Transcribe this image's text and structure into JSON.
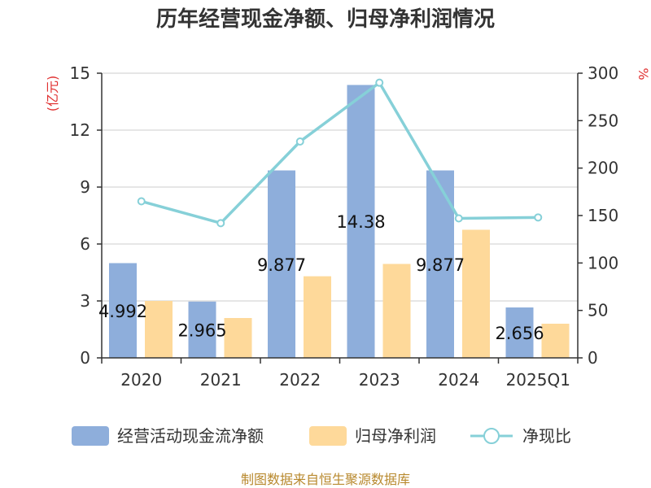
{
  "chart_data": {
    "type": "bar",
    "title": "历年经营现金净额、归母净利润情况",
    "categories": [
      "2020",
      "2021",
      "2022",
      "2023",
      "2024",
      "2025Q1"
    ],
    "y_left": {
      "label": "(亿元)",
      "range": [
        0,
        15
      ],
      "ticks": [
        "0",
        "3",
        "6",
        "9",
        "12",
        "15"
      ]
    },
    "y_right": {
      "label": "%",
      "range": [
        0,
        300
      ],
      "ticks": [
        "0",
        "50",
        "100",
        "150",
        "200",
        "250",
        "300"
      ]
    },
    "series": [
      {
        "name": "经营活动现金流净额",
        "type": "bar",
        "axis": "left",
        "color": "#8eaedb",
        "values": [
          4.992,
          2.965,
          9.877,
          14.38,
          9.877,
          2.656
        ],
        "labels": [
          "4.992",
          "2.965",
          "9.877",
          "14.38",
          "9.877",
          "2.656"
        ]
      },
      {
        "name": "归母净利润",
        "type": "bar",
        "axis": "left",
        "color": "#fed99a",
        "values": [
          3.0,
          2.1,
          4.3,
          4.95,
          6.75,
          1.8
        ]
      },
      {
        "name": "净现比",
        "type": "line",
        "axis": "right",
        "color": "#86d0d8",
        "values": [
          165,
          142,
          228,
          290,
          147,
          148
        ]
      }
    ],
    "grid": true,
    "legend_position": "bottom"
  },
  "source_text": "制图数据来自恒生聚源数据库"
}
